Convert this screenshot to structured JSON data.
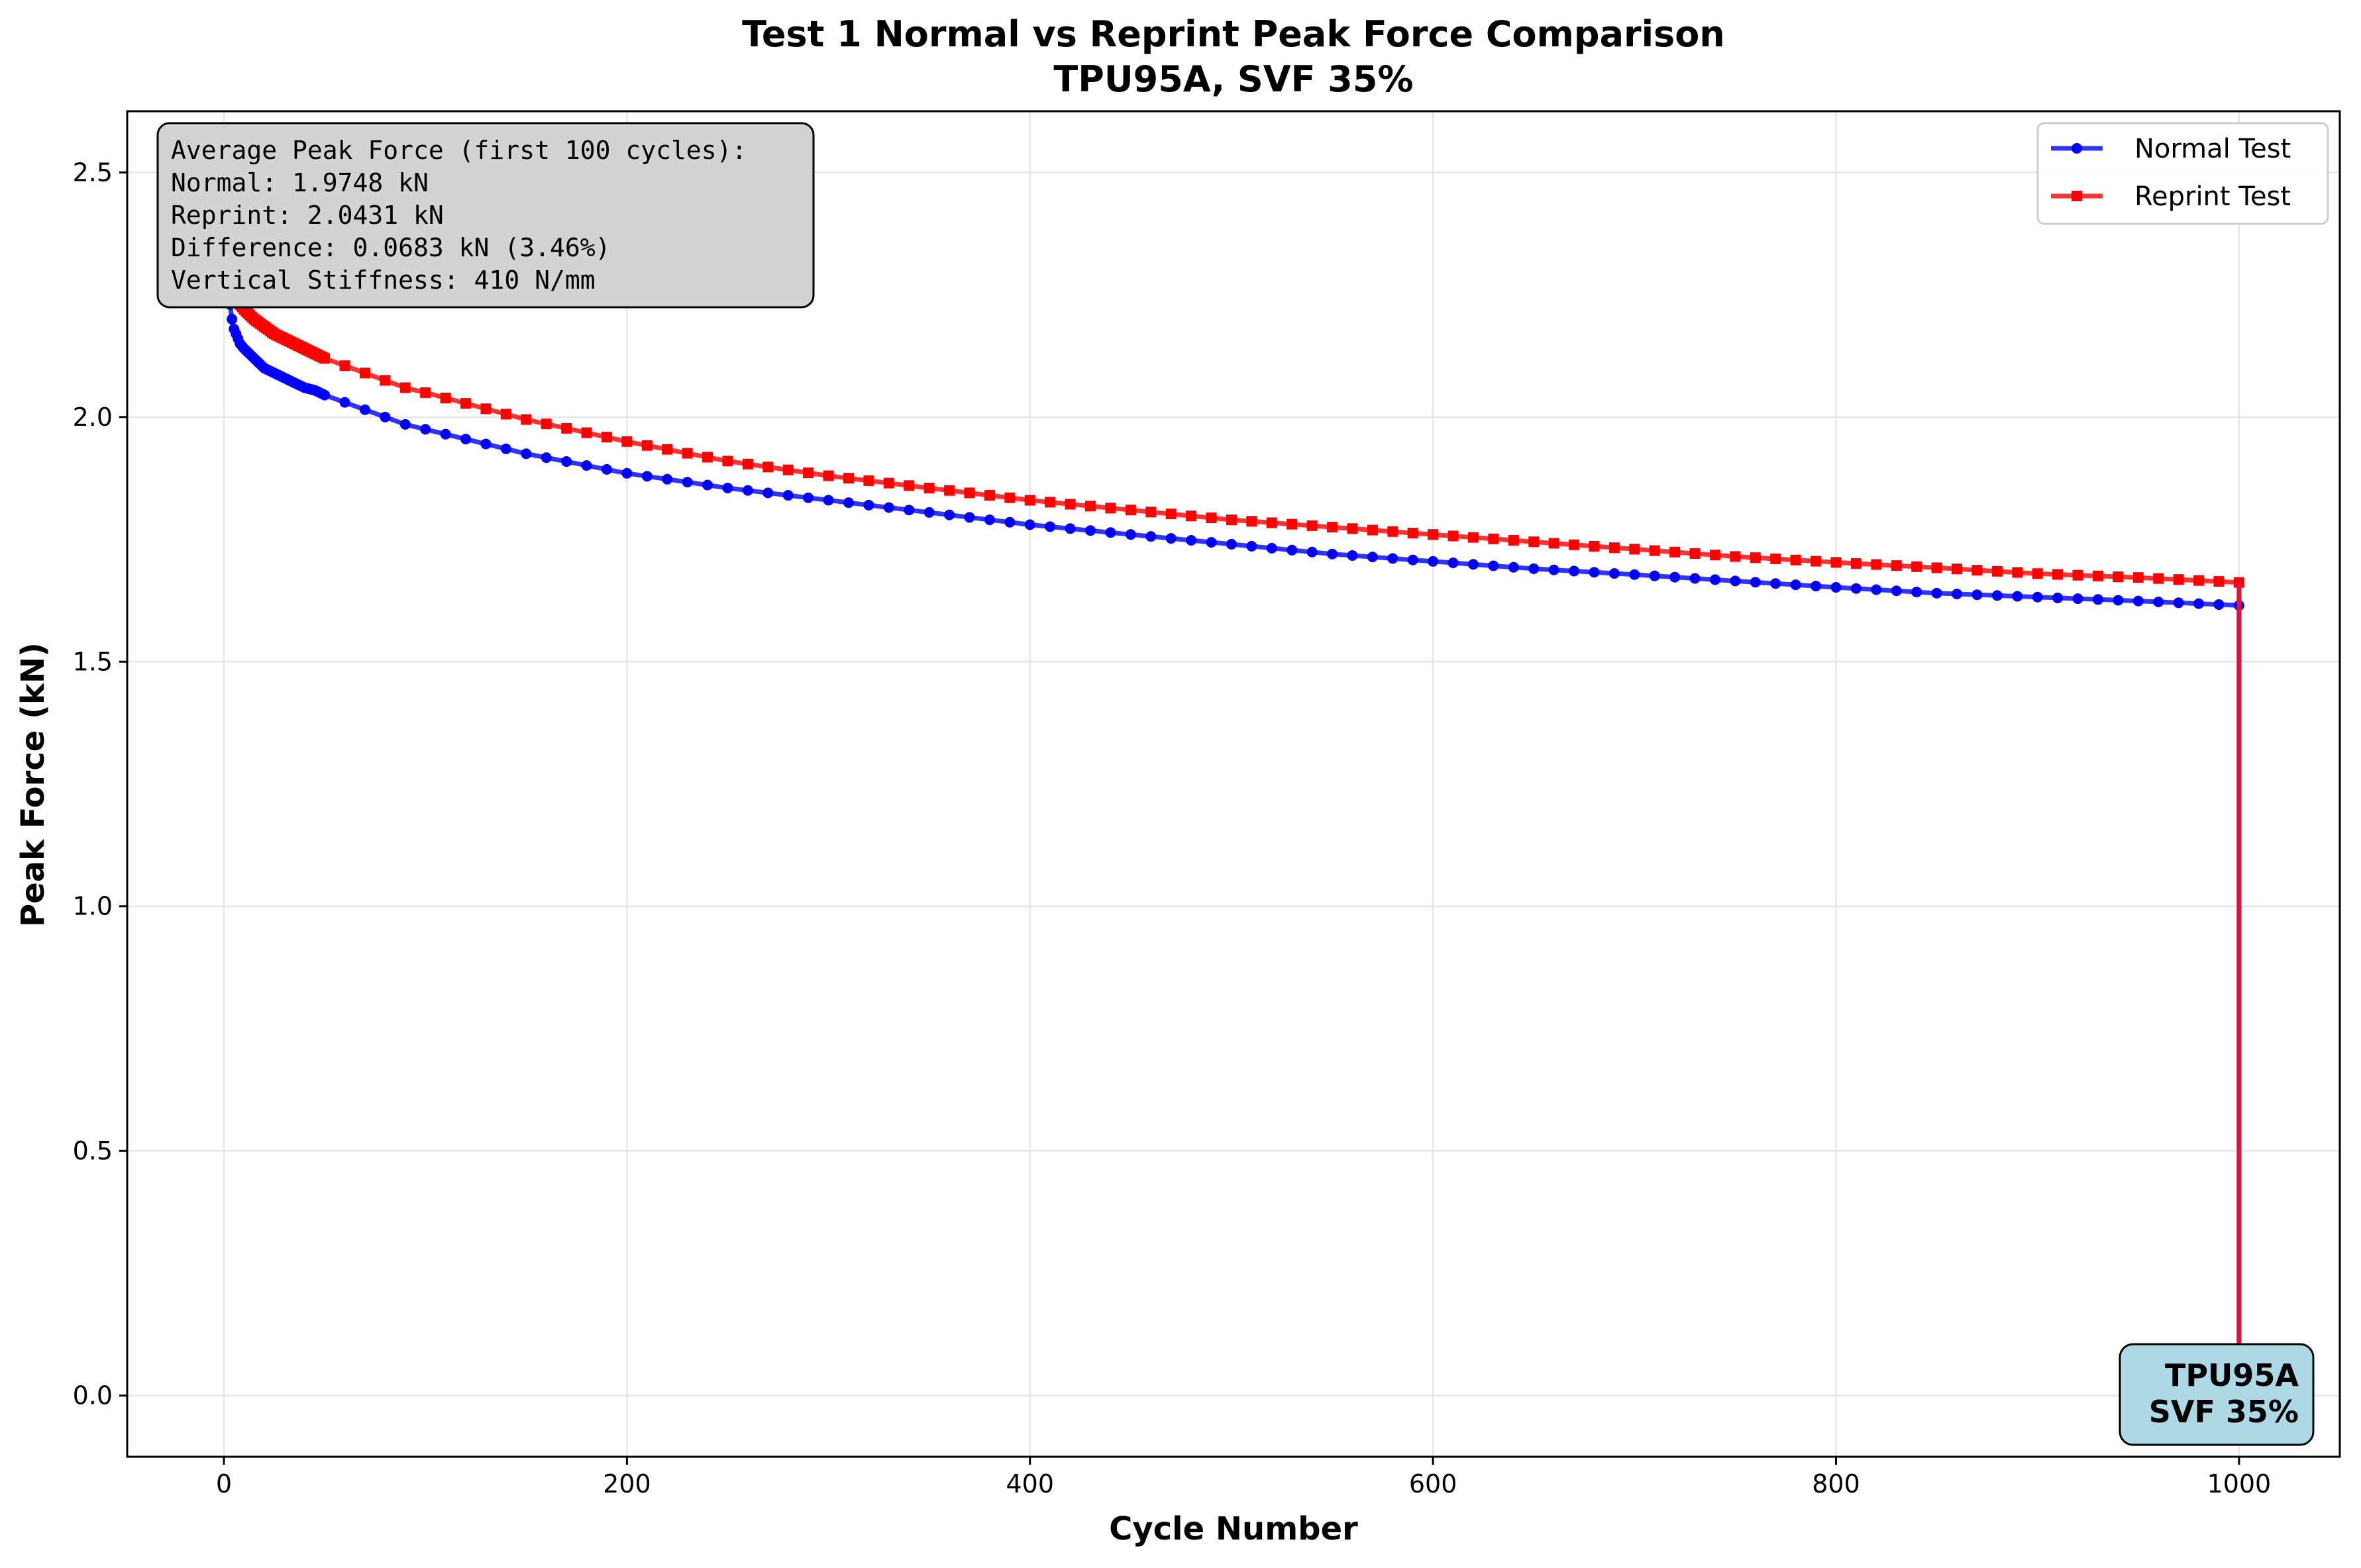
{
  "chart_data": {
    "type": "line",
    "title": "Test 1 Normal vs Reprint Peak Force Comparison",
    "subtitle": "TPU95A, SVF 35%",
    "xlabel": "Cycle Number",
    "ylabel": "Peak Force (kN)",
    "xlim": [
      -48,
      1050
    ],
    "ylim": [
      -0.125,
      2.625
    ],
    "x_ticks": [
      0,
      200,
      400,
      600,
      800,
      1000
    ],
    "y_ticks": [
      0.0,
      0.5,
      1.0,
      1.5,
      2.0,
      2.5
    ],
    "x_tick_labels": [
      "0",
      "200",
      "400",
      "600",
      "800",
      "1000"
    ],
    "y_tick_labels": [
      "0.0",
      "0.5",
      "1.0",
      "1.5",
      "2.0",
      "2.5"
    ],
    "grid": true,
    "legend_position": "top-right",
    "series": [
      {
        "name": "Normal Test",
        "color": "#0000ff",
        "marker": "circle",
        "x": [
          1,
          2,
          3,
          4,
          5,
          6,
          8,
          10,
          15,
          20,
          25,
          30,
          35,
          40,
          45,
          50,
          60,
          70,
          80,
          90,
          100,
          150,
          200,
          250,
          300,
          350,
          400,
          450,
          500,
          550,
          600,
          650,
          700,
          750,
          800,
          850,
          900,
          950,
          1000,
          1000
        ],
        "y": [
          2.46,
          2.3,
          2.23,
          2.2,
          2.18,
          2.17,
          2.15,
          2.14,
          2.12,
          2.1,
          2.09,
          2.08,
          2.07,
          2.06,
          2.055,
          2.045,
          2.03,
          2.015,
          2.0,
          1.985,
          1.975,
          1.925,
          1.885,
          1.855,
          1.83,
          1.805,
          1.78,
          1.76,
          1.74,
          1.72,
          1.705,
          1.69,
          1.678,
          1.665,
          1.652,
          1.64,
          1.632,
          1.624,
          1.615,
          0.0
        ]
      },
      {
        "name": "Reprint Test",
        "color": "#ff0000",
        "marker": "square",
        "x": [
          1,
          2,
          3,
          4,
          5,
          6,
          8,
          10,
          15,
          20,
          25,
          30,
          35,
          40,
          45,
          50,
          60,
          70,
          80,
          90,
          100,
          150,
          200,
          250,
          300,
          350,
          400,
          450,
          500,
          550,
          600,
          650,
          700,
          750,
          800,
          850,
          900,
          950,
          1000,
          1000
        ],
        "y": [
          2.48,
          2.36,
          2.3,
          2.27,
          2.25,
          2.24,
          2.23,
          2.22,
          2.2,
          2.185,
          2.17,
          2.16,
          2.15,
          2.14,
          2.13,
          2.12,
          2.105,
          2.09,
          2.075,
          2.06,
          2.05,
          1.995,
          1.95,
          1.91,
          1.88,
          1.855,
          1.83,
          1.81,
          1.79,
          1.775,
          1.76,
          1.745,
          1.73,
          1.715,
          1.703,
          1.692,
          1.68,
          1.672,
          1.662,
          0.0
        ]
      }
    ],
    "annotations": {
      "stats_box": [
        "Average Peak Force (first 100 cycles):",
        "Normal: 1.9748 kN",
        "Reprint: 2.0431 kN",
        "Difference: 0.0683 kN (3.46%)",
        "Vertical Stiffness: 410 N/mm"
      ],
      "material_badge": [
        "TPU95A",
        "SVF 35%"
      ]
    },
    "colors": {
      "stats_box_fill": "#d3d3d3",
      "badge_fill": "#add8e6",
      "final_drop_line": "#dc143c",
      "grid": "#e6e6e6"
    }
  }
}
